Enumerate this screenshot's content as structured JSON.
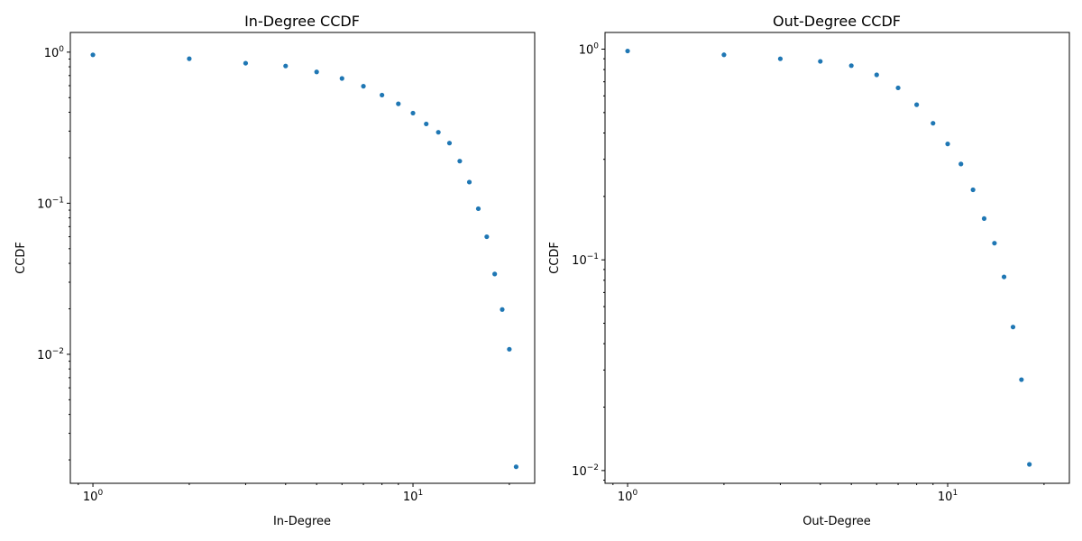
{
  "chart_data": [
    {
      "type": "scatter",
      "title": "In-Degree CCDF",
      "xlabel": "In-Degree",
      "ylabel": "CCDF",
      "x_scale": "log",
      "y_scale": "log",
      "xlim": [
        0.85,
        24
      ],
      "ylim": [
        0.0014,
        1.35
      ],
      "x_ticks": [
        {
          "value": 1,
          "base": "10",
          "exp": "0"
        },
        {
          "value": 10,
          "base": "10",
          "exp": "1"
        }
      ],
      "y_ticks": [
        {
          "value": 0.01,
          "base": "10",
          "exp": "−2"
        },
        {
          "value": 0.1,
          "base": "10",
          "exp": "−1"
        },
        {
          "value": 1,
          "base": "10",
          "exp": "0"
        }
      ],
      "grid": false,
      "color": "#1f77b4",
      "x": [
        1,
        2,
        3,
        4,
        5,
        6,
        7,
        8,
        9,
        10,
        11,
        12,
        13,
        14,
        15,
        16,
        17,
        18,
        19,
        20,
        21
      ],
      "y": [
        0.96,
        0.905,
        0.845,
        0.81,
        0.74,
        0.67,
        0.595,
        0.52,
        0.455,
        0.395,
        0.335,
        0.295,
        0.25,
        0.19,
        0.138,
        0.092,
        0.06,
        0.034,
        0.0198,
        0.0108,
        0.0018
      ]
    },
    {
      "type": "scatter",
      "title": "Out-Degree CCDF",
      "xlabel": "Out-Degree",
      "ylabel": "CCDF",
      "x_scale": "log",
      "y_scale": "log",
      "xlim": [
        0.85,
        24
      ],
      "ylim": [
        0.0087,
        1.2
      ],
      "x_ticks": [
        {
          "value": 1,
          "base": "10",
          "exp": "0"
        },
        {
          "value": 10,
          "base": "10",
          "exp": "1"
        }
      ],
      "y_ticks": [
        {
          "value": 0.01,
          "base": "10",
          "exp": "−2"
        },
        {
          "value": 0.1,
          "base": "10",
          "exp": "−1"
        },
        {
          "value": 1,
          "base": "10",
          "exp": "0"
        }
      ],
      "grid": false,
      "color": "#1f77b4",
      "x": [
        1,
        2,
        3,
        4,
        5,
        6,
        7,
        8,
        9,
        10,
        11,
        12,
        13,
        14,
        15,
        16,
        17,
        18
      ],
      "y": [
        0.98,
        0.94,
        0.9,
        0.875,
        0.835,
        0.755,
        0.655,
        0.545,
        0.445,
        0.355,
        0.285,
        0.215,
        0.157,
        0.12,
        0.083,
        0.048,
        0.027,
        0.0107
      ]
    }
  ]
}
